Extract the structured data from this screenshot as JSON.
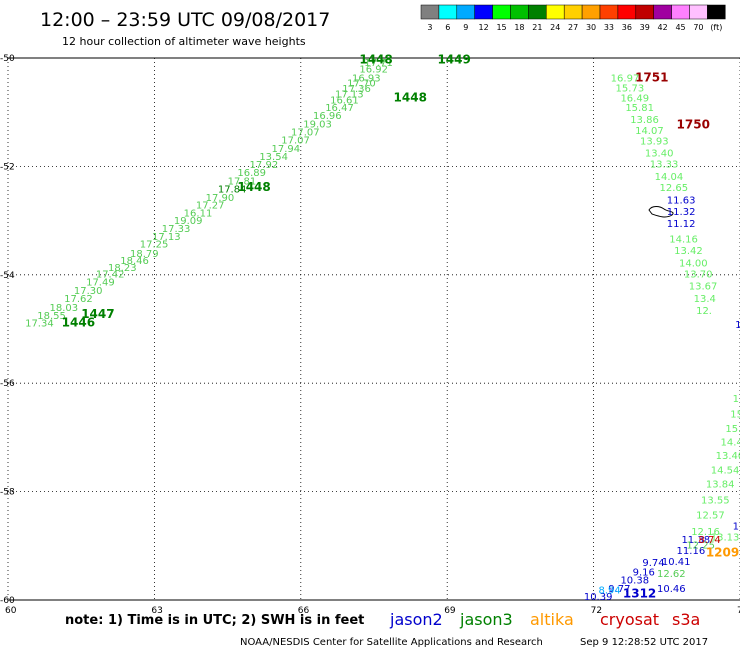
{
  "header": {
    "title": "12:00 – 23:59 UTC 09/08/2017",
    "subtitle": "12 hour collection of altimeter wave heights"
  },
  "colorbar": {
    "labels": [
      "3",
      "6",
      "9",
      "12",
      "15",
      "18",
      "21",
      "24",
      "27",
      "30",
      "33",
      "36",
      "39",
      "42",
      "45",
      "70",
      "(ft)"
    ],
    "colors": [
      "#808080",
      "#00ffff",
      "#00aaff",
      "#0000ff",
      "#00ff00",
      "#00c000",
      "#008000",
      "#ffff00",
      "#ffd000",
      "#ffa000",
      "#ff4000",
      "#ff0000",
      "#c00000",
      "#a000a0",
      "#ff80ff",
      "#ffc0ff",
      "#000000"
    ]
  },
  "footer": {
    "note": "note: 1) Time is in UTC; 2) SWH is in feet",
    "credit": "NOAA/NESDIS Center for Satellite Applications and Research",
    "timestamp": "Sep  9 12:28:52 UTC 2017"
  },
  "legend": [
    {
      "name": "jason2",
      "color": "#0000cc"
    },
    {
      "name": "jason3",
      "color": "#008000"
    },
    {
      "name": "altika",
      "color": "#ff9900"
    },
    {
      "name": "cryosat",
      "color": "#cc0000"
    },
    {
      "name": "s3a",
      "color": "#cc0000"
    }
  ],
  "chart_data": {
    "type": "scatter",
    "title": "12:00 – 23:59 UTC 09/08/2017",
    "subtitle": "12 hour collection of altimeter wave heights",
    "x_ticks": [
      "60",
      "63",
      "66",
      "69",
      "72",
      "75"
    ],
    "y_ticks": [
      "-50",
      "-52",
      "-54",
      "-56",
      "-58",
      "-60"
    ],
    "xlim": [
      60,
      75
    ],
    "ylim": [
      -60,
      -50
    ],
    "grid": true,
    "series": [
      {
        "name": "jason3",
        "color_light": "#55dd55",
        "color_dark": "#008000",
        "pass_labels": [
          {
            "lon": 61.1,
            "lat": -54.95,
            "text": "1446"
          },
          {
            "lon": 61.5,
            "lat": -54.8,
            "text": "1447"
          },
          {
            "lon": 64.7,
            "lat": -52.45,
            "text": "1448"
          },
          {
            "lon": 67.9,
            "lat": -50.8,
            "text": "1448"
          },
          {
            "lon": 67.2,
            "lat": -50.1,
            "text": "1448"
          },
          {
            "lon": 68.8,
            "lat": -50.1,
            "text": "1449"
          }
        ],
        "points": [
          {
            "lon": 60.35,
            "lat": -54.95,
            "v": "17.34",
            "d": 0
          },
          {
            "lon": 60.6,
            "lat": -54.82,
            "v": "18.55",
            "d": 0
          },
          {
            "lon": 60.85,
            "lat": -54.67,
            "v": "18.03",
            "d": 0
          },
          {
            "lon": 61.15,
            "lat": -54.5,
            "v": "17.62",
            "d": 0
          },
          {
            "lon": 61.35,
            "lat": -54.35,
            "v": "17.30",
            "d": 0
          },
          {
            "lon": 61.6,
            "lat": -54.2,
            "v": "17.49",
            "d": 0
          },
          {
            "lon": 61.8,
            "lat": -54.05,
            "v": "17.42",
            "d": 0
          },
          {
            "lon": 62.05,
            "lat": -53.93,
            "v": "18.23",
            "d": 0
          },
          {
            "lon": 62.3,
            "lat": -53.8,
            "v": "18.46",
            "d": 0
          },
          {
            "lon": 62.5,
            "lat": -53.67,
            "v": "18.79",
            "d": 0
          },
          {
            "lon": 62.7,
            "lat": -53.5,
            "v": "17.25",
            "d": 0
          },
          {
            "lon": 62.95,
            "lat": -53.36,
            "v": "17.13",
            "d": 0
          },
          {
            "lon": 63.15,
            "lat": -53.21,
            "v": "17.33",
            "d": 0
          },
          {
            "lon": 63.4,
            "lat": -53.06,
            "v": "19.09",
            "d": 0
          },
          {
            "lon": 63.6,
            "lat": -52.92,
            "v": "16.11",
            "d": 0
          },
          {
            "lon": 63.85,
            "lat": -52.78,
            "v": "17.27",
            "d": 0
          },
          {
            "lon": 64.05,
            "lat": -52.64,
            "v": "17.90",
            "d": 0
          },
          {
            "lon": 64.3,
            "lat": -52.48,
            "v": "17.84",
            "d": 1
          },
          {
            "lon": 64.5,
            "lat": -52.33,
            "v": "17.81",
            "d": 0
          },
          {
            "lon": 64.7,
            "lat": -52.18,
            "v": "16.89",
            "d": 0
          },
          {
            "lon": 64.95,
            "lat": -52.03,
            "v": "17.92",
            "d": 0
          },
          {
            "lon": 65.15,
            "lat": -51.88,
            "v": "13.54",
            "d": 0
          },
          {
            "lon": 65.4,
            "lat": -51.73,
            "v": "17.94",
            "d": 0
          },
          {
            "lon": 65.6,
            "lat": -51.58,
            "v": "17.07",
            "d": 0
          },
          {
            "lon": 65.8,
            "lat": -51.43,
            "v": "17.07",
            "d": 0
          },
          {
            "lon": 66.05,
            "lat": -51.28,
            "v": "19.03",
            "d": 0
          },
          {
            "lon": 66.25,
            "lat": -51.13,
            "v": "16.96",
            "d": 0
          },
          {
            "lon": 66.5,
            "lat": -50.98,
            "v": "16.47",
            "d": 0
          },
          {
            "lon": 66.6,
            "lat": -50.84,
            "v": "16.61",
            "d": 0
          },
          {
            "lon": 66.7,
            "lat": -50.73,
            "v": "17.13",
            "d": 0
          },
          {
            "lon": 66.85,
            "lat": -50.63,
            "v": "17.36",
            "d": 0
          },
          {
            "lon": 66.95,
            "lat": -50.53,
            "v": "17.70",
            "d": 0
          },
          {
            "lon": 67.05,
            "lat": -50.43,
            "v": "16.93",
            "d": 0
          },
          {
            "lon": 67.2,
            "lat": -50.27,
            "v": "16.92",
            "d": 0
          },
          {
            "lon": 67.3,
            "lat": -50.15,
            "v": "17.71",
            "d": 0
          }
        ]
      },
      {
        "name": "jason3-east",
        "points": [
          {
            "lon": 72.35,
            "lat": -50.43,
            "v": "16.97",
            "d": 0
          },
          {
            "lon": 72.45,
            "lat": -50.62,
            "v": "15.73",
            "d": 0
          },
          {
            "lon": 72.55,
            "lat": -50.8,
            "v": "16.49",
            "d": 0
          },
          {
            "lon": 72.65,
            "lat": -50.98,
            "v": "15.81",
            "d": 0
          },
          {
            "lon": 72.75,
            "lat": -51.2,
            "v": "13.86",
            "d": 0
          },
          {
            "lon": 72.85,
            "lat": -51.4,
            "v": "14.07",
            "d": 0
          },
          {
            "lon": 72.95,
            "lat": -51.6,
            "v": "13.93",
            "d": 0
          },
          {
            "lon": 73.05,
            "lat": -51.82,
            "v": "13.40",
            "d": 0
          },
          {
            "lon": 73.15,
            "lat": -52.02,
            "v": "13.33",
            "d": 0
          },
          {
            "lon": 73.25,
            "lat": -52.25,
            "v": "14.04",
            "d": 0
          },
          {
            "lon": 73.35,
            "lat": -52.45,
            "v": "12.65",
            "d": 0
          },
          {
            "lon": 73.55,
            "lat": -53.4,
            "v": "14.16",
            "d": 0
          },
          {
            "lon": 73.65,
            "lat": -53.62,
            "v": "13.42",
            "d": 0
          },
          {
            "lon": 73.75,
            "lat": -53.85,
            "v": "14.00",
            "d": 0
          },
          {
            "lon": 73.85,
            "lat": -54.05,
            "v": "13.70",
            "d": 0
          },
          {
            "lon": 73.95,
            "lat": -54.27,
            "v": "13.67",
            "d": 0
          },
          {
            "lon": 74.05,
            "lat": -54.5,
            "v": "13.4",
            "d": 0
          },
          {
            "lon": 74.1,
            "lat": -54.72,
            "v": "12.",
            "d": 0
          }
        ]
      },
      {
        "name": "jason2",
        "points": [
          {
            "lon": 73.5,
            "lat": -52.68,
            "v": "11.63"
          },
          {
            "lon": 73.5,
            "lat": -52.9,
            "v": "11.32"
          },
          {
            "lon": 73.5,
            "lat": -53.12,
            "v": "11.12"
          },
          {
            "lon": 74.9,
            "lat": -54.98,
            "v": "1"
          }
        ]
      },
      {
        "name": "east-lower",
        "points": [
          {
            "lon": 74.85,
            "lat": -56.35,
            "v": "1"
          },
          {
            "lon": 74.8,
            "lat": -56.63,
            "v": "15."
          },
          {
            "lon": 74.7,
            "lat": -56.9,
            "v": "15.3"
          },
          {
            "lon": 74.6,
            "lat": -57.15,
            "v": "14.47"
          },
          {
            "lon": 74.5,
            "lat": -57.4,
            "v": "13.40"
          },
          {
            "lon": 74.4,
            "lat": -57.67,
            "v": "14.54"
          },
          {
            "lon": 74.3,
            "lat": -57.92,
            "v": "13.84"
          },
          {
            "lon": 74.2,
            "lat": -58.22,
            "v": "13.55"
          },
          {
            "lon": 74.1,
            "lat": -58.5,
            "v": "12.57"
          },
          {
            "lon": 74.0,
            "lat": -58.8,
            "v": "12.16"
          },
          {
            "lon": 74.4,
            "lat": -58.9,
            "v": "13.13"
          }
        ]
      },
      {
        "name": "jason2-south",
        "points": [
          {
            "lon": 71.8,
            "lat": -60.0,
            "v": "10.39"
          },
          {
            "lon": 72.3,
            "lat": -59.85,
            "v": "9.77"
          },
          {
            "lon": 72.55,
            "lat": -59.7,
            "v": "10.38"
          },
          {
            "lon": 72.8,
            "lat": -59.55,
            "v": "9.16"
          },
          {
            "lon": 73.0,
            "lat": -59.37,
            "v": "9.74"
          },
          {
            "lon": 73.4,
            "lat": -59.35,
            "v": "10.41"
          },
          {
            "lon": 73.3,
            "lat": -59.58,
            "v": "12.62",
            "light": 1
          },
          {
            "lon": 73.3,
            "lat": -59.85,
            "v": "10.46"
          },
          {
            "lon": 73.7,
            "lat": -59.15,
            "v": "11.16"
          },
          {
            "lon": 73.8,
            "lat": -58.95,
            "v": "11.38"
          },
          {
            "lon": 73.9,
            "lat": -59.05,
            "v": "12.25",
            "light": 1
          },
          {
            "lon": 74.85,
            "lat": -58.7,
            "v": "11.26"
          },
          {
            "lon": 75.0,
            "lat": -58.55,
            "v": "9.1"
          }
        ],
        "pass_label": {
          "lon": 72.6,
          "lat": -59.95,
          "text": "1312"
        }
      },
      {
        "name": "altika",
        "points": [
          {
            "lon": 72.1,
            "lat": -59.88,
            "v": "8.94"
          }
        ],
        "pass_label": {
          "lon": 74.3,
          "lat": -59.2,
          "text": "1209"
        }
      },
      {
        "name": "cryosat",
        "points": [
          {
            "lon": 74.15,
            "lat": -58.95,
            "v": "8.74"
          }
        ],
        "pass_labels": [
          {
            "lon": 72.85,
            "lat": -50.43,
            "text": "1751"
          },
          {
            "lon": 73.7,
            "lat": -51.3,
            "text": "1750"
          }
        ]
      }
    ]
  }
}
